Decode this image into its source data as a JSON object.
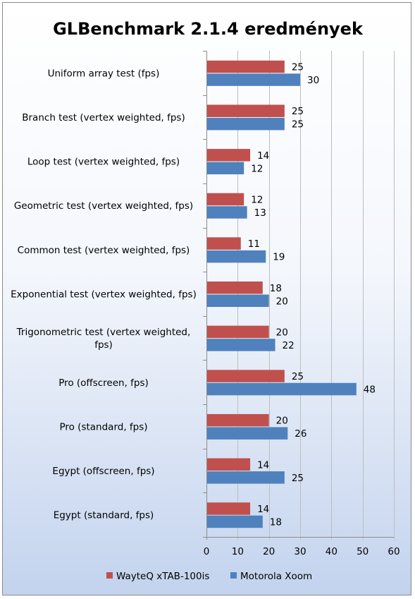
{
  "chart_data": {
    "type": "bar",
    "orientation": "horizontal",
    "title": "GLBenchmark 2.1.4 eredmények",
    "categories": [
      "Uniform array test (fps)",
      "Branch test (vertex weighted, fps)",
      "Loop test (vertex weighted, fps)",
      "Geometric test (vertex weighted, fps)",
      "Common test (vertex weighted, fps)",
      "Exponential test (vertex weighted, fps)",
      "Trigonometric test (vertex weighted, fps)",
      "Pro (offscreen, fps)",
      "Pro (standard, fps)",
      "Egypt (offscreen, fps)",
      "Egypt (standard, fps)"
    ],
    "series": [
      {
        "name": "WayteQ xTAB-100is",
        "color": "#c0504d",
        "values": [
          25,
          25,
          14,
          12,
          11,
          18,
          20,
          25,
          20,
          14,
          14
        ]
      },
      {
        "name": "Motorola Xoom",
        "color": "#4f81bd",
        "values": [
          30,
          25,
          12,
          13,
          19,
          20,
          22,
          48,
          26,
          25,
          18
        ]
      }
    ],
    "xlim": [
      0,
      60
    ],
    "xticks": [
      0,
      10,
      20,
      30,
      40,
      50,
      60
    ],
    "grid": true,
    "legend_position": "bottom"
  }
}
